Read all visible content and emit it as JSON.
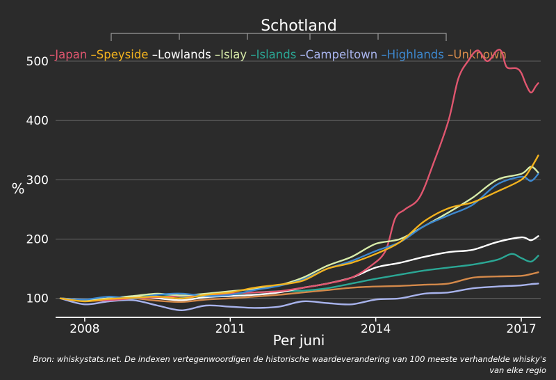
{
  "chart_data": {
    "type": "line",
    "title": "Schotland",
    "ylabel": "%",
    "xlabel": "Per juni",
    "source": "Bron: whiskystats.net. De indexen vertegenwoordigen de historische waardeverandering van 100 meeste verhandelde whisky's van elke regio",
    "xlim": [
      2007.4,
      2017.4
    ],
    "ylim": [
      68,
      528
    ],
    "x_ticks": [
      2008,
      2011,
      2014,
      2017
    ],
    "x_tick_labels": [
      "2008",
      "2011",
      "2014",
      "2017"
    ],
    "y_ticks": [
      100,
      200,
      300,
      400,
      500
    ],
    "y_tick_labels": [
      "100",
      "200",
      "300",
      "400",
      "500"
    ],
    "grid": "horizontal",
    "legend_position": "top",
    "series": [
      {
        "name": "Japan",
        "color": "#e0566f",
        "x": [
          2007.5,
          2008.0,
          2008.5,
          2009.0,
          2009.5,
          2010.0,
          2010.5,
          2011.0,
          2011.5,
          2012.0,
          2012.5,
          2013.0,
          2013.5,
          2013.9,
          2014.2,
          2014.4,
          2014.6,
          2014.9,
          2015.2,
          2015.5,
          2015.7,
          2015.9,
          2016.1,
          2016.3,
          2016.5,
          2016.6,
          2016.7,
          2016.9,
          2017.0,
          2017.1,
          2017.2,
          2017.3,
          2017.35
        ],
        "y": [
          100,
          96,
          97,
          100,
          102,
          104,
          105,
          108,
          110,
          112,
          118,
          125,
          135,
          155,
          180,
          235,
          250,
          270,
          330,
          400,
          470,
          500,
          518,
          500,
          518,
          515,
          490,
          488,
          480,
          460,
          447,
          458,
          463
        ]
      },
      {
        "name": "Speyside",
        "color": "#f2b21e",
        "x": [
          2007.5,
          2008.0,
          2008.5,
          2009.0,
          2009.5,
          2010.0,
          2010.5,
          2011.0,
          2011.5,
          2012.0,
          2012.5,
          2013.0,
          2013.5,
          2014.0,
          2014.5,
          2015.0,
          2015.5,
          2016.0,
          2016.5,
          2017.0,
          2017.2,
          2017.35
        ],
        "y": [
          100,
          95,
          99,
          101,
          103,
          100,
          106,
          110,
          118,
          123,
          130,
          150,
          160,
          175,
          195,
          230,
          252,
          262,
          280,
          300,
          320,
          341
        ]
      },
      {
        "name": "Lowlands",
        "color": "#ffffff",
        "x": [
          2007.5,
          2008.0,
          2008.5,
          2009.0,
          2009.5,
          2010.0,
          2010.5,
          2011.0,
          2011.5,
          2012.0,
          2012.5,
          2013.0,
          2013.5,
          2014.0,
          2014.5,
          2015.0,
          2015.5,
          2016.0,
          2016.5,
          2017.0,
          2017.2,
          2017.35
        ],
        "y": [
          100,
          98,
          100,
          103,
          100,
          97,
          102,
          104,
          106,
          110,
          118,
          125,
          135,
          152,
          160,
          170,
          178,
          182,
          195,
          203,
          198,
          205
        ]
      },
      {
        "name": "Islay",
        "color": "#d8ecaa",
        "x": [
          2007.5,
          2008.0,
          2008.5,
          2009.0,
          2009.5,
          2010.0,
          2010.5,
          2011.0,
          2011.5,
          2012.0,
          2012.5,
          2013.0,
          2013.5,
          2014.0,
          2014.5,
          2015.0,
          2015.5,
          2016.0,
          2016.5,
          2017.0,
          2017.2,
          2017.35
        ],
        "y": [
          100,
          97,
          100,
          104,
          108,
          105,
          108,
          112,
          116,
          122,
          135,
          155,
          170,
          192,
          200,
          222,
          245,
          270,
          300,
          310,
          322,
          312
        ]
      },
      {
        "name": "Islands",
        "color": "#2ba795",
        "x": [
          2007.5,
          2008.0,
          2008.5,
          2009.0,
          2009.5,
          2010.0,
          2010.5,
          2011.0,
          2011.5,
          2012.0,
          2012.5,
          2013.0,
          2013.5,
          2014.0,
          2014.5,
          2015.0,
          2015.5,
          2016.0,
          2016.5,
          2016.8,
          2017.0,
          2017.2,
          2017.35
        ],
        "y": [
          100,
          97,
          100,
          103,
          107,
          103,
          104,
          107,
          110,
          112,
          113,
          117,
          125,
          133,
          140,
          147,
          152,
          157,
          165,
          175,
          168,
          162,
          172
        ]
      },
      {
        "name": "Campeltown",
        "color": "#a8b3ec",
        "x": [
          2007.5,
          2008.0,
          2008.5,
          2009.0,
          2009.5,
          2010.0,
          2010.5,
          2011.0,
          2011.5,
          2012.0,
          2012.5,
          2013.0,
          2013.5,
          2014.0,
          2014.5,
          2015.0,
          2015.5,
          2016.0,
          2016.5,
          2017.0,
          2017.2,
          2017.35
        ],
        "y": [
          100,
          90,
          95,
          97,
          88,
          80,
          88,
          86,
          84,
          86,
          95,
          92,
          90,
          98,
          100,
          108,
          110,
          117,
          120,
          122,
          124,
          125
        ]
      },
      {
        "name": "Highlands",
        "color": "#3d88cf",
        "x": [
          2007.5,
          2008.0,
          2008.5,
          2009.0,
          2009.5,
          2010.0,
          2010.5,
          2011.0,
          2011.5,
          2012.0,
          2012.5,
          2013.0,
          2013.5,
          2014.0,
          2014.5,
          2015.0,
          2015.5,
          2016.0,
          2016.5,
          2017.0,
          2017.2,
          2017.35
        ],
        "y": [
          100,
          98,
          103,
          100,
          106,
          108,
          104,
          106,
          114,
          121,
          132,
          150,
          163,
          180,
          195,
          222,
          240,
          258,
          292,
          305,
          298,
          310
        ]
      },
      {
        "name": "Unknown",
        "color": "#d4894a",
        "x": [
          2007.5,
          2008.0,
          2008.5,
          2009.0,
          2009.5,
          2010.0,
          2010.5,
          2011.0,
          2011.5,
          2012.0,
          2012.5,
          2013.0,
          2013.5,
          2014.0,
          2014.5,
          2015.0,
          2015.5,
          2016.0,
          2016.5,
          2017.0,
          2017.2,
          2017.35
        ],
        "y": [
          100,
          96,
          98,
          100,
          96,
          94,
          98,
          100,
          103,
          106,
          110,
          114,
          118,
          120,
          121,
          123,
          125,
          135,
          137,
          138,
          141,
          144
        ]
      }
    ]
  }
}
